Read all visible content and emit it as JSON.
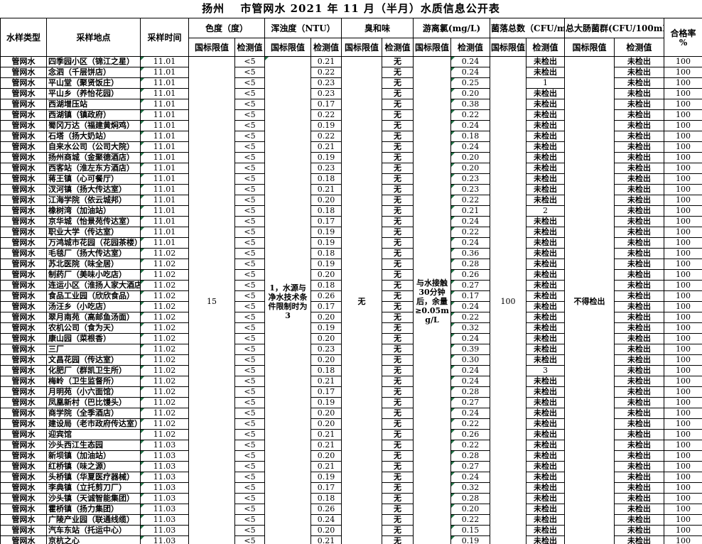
{
  "title": "扬州　 市管网水 2021 年 11 月（半月）水质信息公开表",
  "colors": {
    "marker_green": "#217346",
    "border": "#000000",
    "background": "#ffffff"
  },
  "table": {
    "header": {
      "sample_type": "水样类型",
      "location": "采样地点",
      "time": "采样时间",
      "limit_label": "国标限值",
      "value_label": "检测值",
      "groups": [
        {
          "label": "色度（度）"
        },
        {
          "label": "浑浊度（NTU）"
        },
        {
          "label": "臭和味"
        },
        {
          "label": "游离氯(mg/L)"
        },
        {
          "label": "菌落总数（CFU/mL）"
        },
        {
          "label": "总大肠菌群(CFU/100mL)"
        }
      ],
      "pass_rate": "合格率",
      "pass_rate_unit": "%"
    },
    "limits": {
      "chroma": "15",
      "turbidity": "1，水源与净水技术条件限制时为3",
      "odor": "无",
      "chlorine": "与水接触30分钟后，余量≥0.05mg/L",
      "colony": "100",
      "coliform": "不得检出"
    },
    "markers": {
      "color": "#217346",
      "time_cells": true,
      "chlorine_value_cells": true,
      "turbidity_limit_cell": true
    },
    "rows": [
      [
        "管网水",
        "四季园小区（锦江之星）",
        "11.01",
        "<5",
        "0.21",
        "无",
        "0.24",
        "未检出",
        "未检出",
        "100"
      ],
      [
        "管网水",
        "念泗（千层饼店）",
        "11.01",
        "<5",
        "0.22",
        "无",
        "0.24",
        "未检出",
        "未检出",
        "100"
      ],
      [
        "管网水",
        "平山堂（聚贤饭庄）",
        "11.01",
        "<5",
        "0.23",
        "无",
        "0.25",
        "1",
        "未检出",
        "100"
      ],
      [
        "管网水",
        "平山乡（养怡花园）",
        "11.01",
        "<5",
        "0.23",
        "无",
        "0.20",
        "未检出",
        "未检出",
        "100"
      ],
      [
        "管网水",
        "西湖增压站",
        "11.01",
        "<5",
        "0.17",
        "无",
        "0.38",
        "未检出",
        "未检出",
        "100"
      ],
      [
        "管网水",
        "西湖镇（镇政府）",
        "11.01",
        "<5",
        "0.22",
        "无",
        "0.22",
        "未检出",
        "未检出",
        "100"
      ],
      [
        "管网水",
        "蜀冈万达（福建黄焖鸡）",
        "11.01",
        "<5",
        "0.19",
        "无",
        "0.24",
        "未检出",
        "未检出",
        "100"
      ],
      [
        "管网水",
        "石塔（扬大奶站）",
        "11.01",
        "<5",
        "0.22",
        "无",
        "0.18",
        "未检出",
        "未检出",
        "100"
      ],
      [
        "管网水",
        "自来水公司（公司大院）",
        "11.01",
        "<5",
        "0.21",
        "无",
        "0.24",
        "未检出",
        "未检出",
        "100"
      ],
      [
        "管网水",
        "扬州商城（金聚德酒店）",
        "11.01",
        "<5",
        "0.19",
        "无",
        "0.20",
        "未检出",
        "未检出",
        "100"
      ],
      [
        "管网水",
        "西客站（淮左东方酒店）",
        "11.01",
        "<5",
        "0.23",
        "无",
        "0.20",
        "未检出",
        "未检出",
        "100"
      ],
      [
        "管网水",
        "蒋王镇（心可餐厅）",
        "11.01",
        "<5",
        "0.18",
        "无",
        "0.23",
        "未检出",
        "未检出",
        "100"
      ],
      [
        "管网水",
        "汊河镇（扬大传达室）",
        "11.01",
        "<5",
        "0.21",
        "无",
        "0.23",
        "未检出",
        "未检出",
        "100"
      ],
      [
        "管网水",
        "江海学院（依云城邦）",
        "11.01",
        "<5",
        "0.20",
        "无",
        "0.22",
        "未检出",
        "未检出",
        "100"
      ],
      [
        "管网水",
        "橡树湾（加油站）",
        "11.01",
        "<5",
        "0.18",
        "无",
        "0.21",
        "2",
        "未检出",
        "100"
      ],
      [
        "管网水",
        "京华城（怡景苑传达室）",
        "11.01",
        "<5",
        "0.17",
        "无",
        "0.24",
        "未检出",
        "未检出",
        "100"
      ],
      [
        "管网水",
        "职业大学（传达室）",
        "11.01",
        "<5",
        "0.19",
        "无",
        "0.22",
        "未检出",
        "未检出",
        "100"
      ],
      [
        "管网水",
        "万鸿城市花园（花园茶楼）",
        "11.01",
        "<5",
        "0.19",
        "无",
        "0.24",
        "未检出",
        "未检出",
        "100"
      ],
      [
        "管网水",
        "毛毯厂（扬大传达室）",
        "11.02",
        "<5",
        "0.18",
        "无",
        "0.36",
        "未检出",
        "未检出",
        "100"
      ],
      [
        "管网水",
        "苏北医院（味全居）",
        "11.02",
        "<5",
        "0.19",
        "无",
        "0.28",
        "未检出",
        "未检出",
        "100"
      ],
      [
        "管网水",
        "制药厂（美味小吃店）",
        "11.02",
        "<5",
        "0.20",
        "无",
        "0.26",
        "未检出",
        "未检出",
        "100"
      ],
      [
        "管网水",
        "连运小区（淮扬人家大酒店）",
        "11.02",
        "<5",
        "0.18",
        "无",
        "0.27",
        "未检出",
        "未检出",
        "100"
      ],
      [
        "管网水",
        "食品工业园（欣欣食品）",
        "11.02",
        "<5",
        "0.26",
        "无",
        "0.17",
        "未检出",
        "未检出",
        "100"
      ],
      [
        "管网水",
        "汤汪乡（小吃店）",
        "11.02",
        "<5",
        "0.17",
        "无",
        "0.24",
        "未检出",
        "未检出",
        "100"
      ],
      [
        "管网水",
        "翠月南苑（高邮鱼汤面）",
        "11.02",
        "<5",
        "0.20",
        "无",
        "0.22",
        "未检出",
        "未检出",
        "100"
      ],
      [
        "管网水",
        "农机公司（食为天）",
        "11.02",
        "<5",
        "0.19",
        "无",
        "0.32",
        "未检出",
        "未检出",
        "100"
      ],
      [
        "管网水",
        "康山园（菜根香）",
        "11.02",
        "<5",
        "0.20",
        "无",
        "0.24",
        "未检出",
        "未检出",
        "100"
      ],
      [
        "管网水",
        "三厂",
        "11.02",
        "<5",
        "0.23",
        "无",
        "0.39",
        "未检出",
        "未检出",
        "100"
      ],
      [
        "管网水",
        "文昌花园（传达室）",
        "11.02",
        "<5",
        "0.20",
        "无",
        "0.30",
        "未检出",
        "未检出",
        "100"
      ],
      [
        "管网水",
        "化肥厂（群凯卫生所）",
        "11.02",
        "<5",
        "0.18",
        "无",
        "0.24",
        "3",
        "未检出",
        "100"
      ],
      [
        "管网水",
        "梅岭（卫生监督所）",
        "11.02",
        "<5",
        "0.21",
        "无",
        "0.24",
        "未检出",
        "未检出",
        "100"
      ],
      [
        "管网水",
        "月明苑（小六面馆）",
        "11.02",
        "<5",
        "0.17",
        "无",
        "0.28",
        "未检出",
        "未检出",
        "100"
      ],
      [
        "管网水",
        "凤凰新村（巴比馒头）",
        "11.02",
        "<5",
        "0.19",
        "无",
        "0.27",
        "未检出",
        "未检出",
        "100"
      ],
      [
        "管网水",
        "商学院（全季酒店）",
        "11.02",
        "<5",
        "0.20",
        "无",
        "0.24",
        "未检出",
        "未检出",
        "100"
      ],
      [
        "管网水",
        "建设局（老市政府传达室）",
        "11.02",
        "<5",
        "0.20",
        "无",
        "0.22",
        "未检出",
        "未检出",
        "100"
      ],
      [
        "管网水",
        "迎宾馆",
        "11.02",
        "<5",
        "0.21",
        "无",
        "0.26",
        "未检出",
        "未检出",
        "100"
      ],
      [
        "管网水",
        "沙头西江生态园",
        "11.03",
        "<5",
        "0.21",
        "无",
        "0.22",
        "未检出",
        "未检出",
        "100"
      ],
      [
        "管网水",
        "新坝镇（加油站）",
        "11.03",
        "<5",
        "0.20",
        "无",
        "0.28",
        "未检出",
        "未检出",
        "100"
      ],
      [
        "管网水",
        "红桥镇（味之源）",
        "11.03",
        "<5",
        "0.21",
        "无",
        "0.27",
        "未检出",
        "未检出",
        "100"
      ],
      [
        "管网水",
        "头桥镇（华夏医疗器械）",
        "11.03",
        "<5",
        "0.19",
        "无",
        "0.24",
        "未检出",
        "未检出",
        "100"
      ],
      [
        "管网水",
        "李典镇（立托剪刀厂）",
        "11.03",
        "<5",
        "0.17",
        "无",
        "0.32",
        "未检出",
        "未检出",
        "100"
      ],
      [
        "管网水",
        "沙头镇（天诚智能集团）",
        "11.03",
        "<5",
        "0.18",
        "无",
        "0.28",
        "未检出",
        "未检出",
        "100"
      ],
      [
        "管网水",
        "霍桥镇（扬力集团）",
        "11.03",
        "<5",
        "0.26",
        "无",
        "0.20",
        "未检出",
        "未检出",
        "100"
      ],
      [
        "管网水",
        "广陵产业园（联通线缆）",
        "11.03",
        "<5",
        "0.24",
        "无",
        "0.22",
        "未检出",
        "未检出",
        "100"
      ],
      [
        "管网水",
        "汽车东站（托运中心）",
        "11.03",
        "<5",
        "0.20",
        "无",
        "0.15",
        "未检出",
        "未检出",
        "100"
      ],
      [
        "管网水",
        "京杭之心",
        "11.03",
        "<5",
        "0.21",
        "无",
        "0.19",
        "未检出",
        "未检出",
        "100"
      ]
    ]
  }
}
